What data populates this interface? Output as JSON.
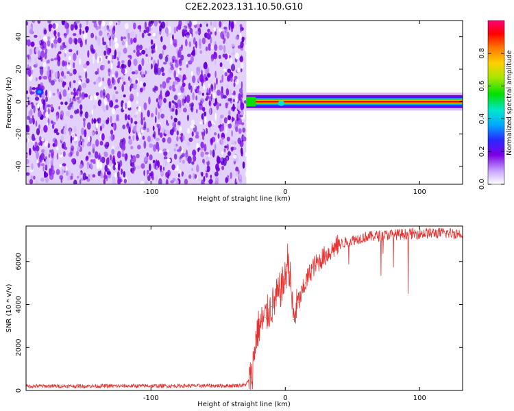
{
  "figure_title": "C2E2.2023.131.10.50.G10",
  "colors": {
    "snr_line": "#e8312e",
    "axis": "#000000",
    "noise_purple": "#7a00e6"
  },
  "chart_data": [
    {
      "type": "heatmap",
      "title": "C2E2.2023.131.10.50.G10",
      "xlabel": "Height of straight line (km)",
      "ylabel": "Frequency (Hz)",
      "xlim": [
        -193,
        132
      ],
      "ylim": [
        -51,
        50
      ],
      "x_ticks": [
        -100,
        0,
        100
      ],
      "y_ticks": [
        -40,
        -20,
        0,
        20,
        40
      ],
      "colorbar": {
        "label": "Normalized spectral amplitude",
        "range": [
          0,
          1
        ],
        "ticks": [
          0.0,
          0.2,
          0.4,
          0.6,
          0.8
        ]
      },
      "regions": [
        {
          "x_range": [
            -193,
            -29
          ],
          "description_value": "noise",
          "amplitude_range": [
            0.05,
            0.3
          ]
        },
        {
          "x_range": [
            -29,
            132
          ],
          "signal_center_freq_hz": 0,
          "signal_halfwidth_hz": 3,
          "peak_amplitude": 1.0
        }
      ]
    },
    {
      "type": "line",
      "xlabel": "Height of straight line (km)",
      "ylabel": "SNR (10 * v/v)",
      "xlim": [
        -193,
        132
      ],
      "ylim": [
        0,
        7650
      ],
      "x_ticks": [
        -100,
        0,
        100
      ],
      "y_ticks": [
        0,
        2000,
        4000,
        6000
      ],
      "series": [
        {
          "x": [
            -193,
            -100,
            -40,
            -30,
            -25,
            -22,
            -20,
            -15,
            -10,
            -5,
            0,
            2,
            4,
            6,
            8,
            10,
            15,
            20,
            30,
            40,
            50,
            60,
            70,
            80,
            90,
            100,
            110,
            120,
            132
          ],
          "y": [
            200,
            210,
            220,
            250,
            600,
            2400,
            2900,
            3400,
            3900,
            4500,
            5200,
            6200,
            5000,
            3300,
            3800,
            4100,
            5000,
            5700,
            6300,
            6800,
            7000,
            7150,
            7200,
            7250,
            7280,
            7300,
            7320,
            7320,
            7300
          ]
        }
      ]
    }
  ]
}
